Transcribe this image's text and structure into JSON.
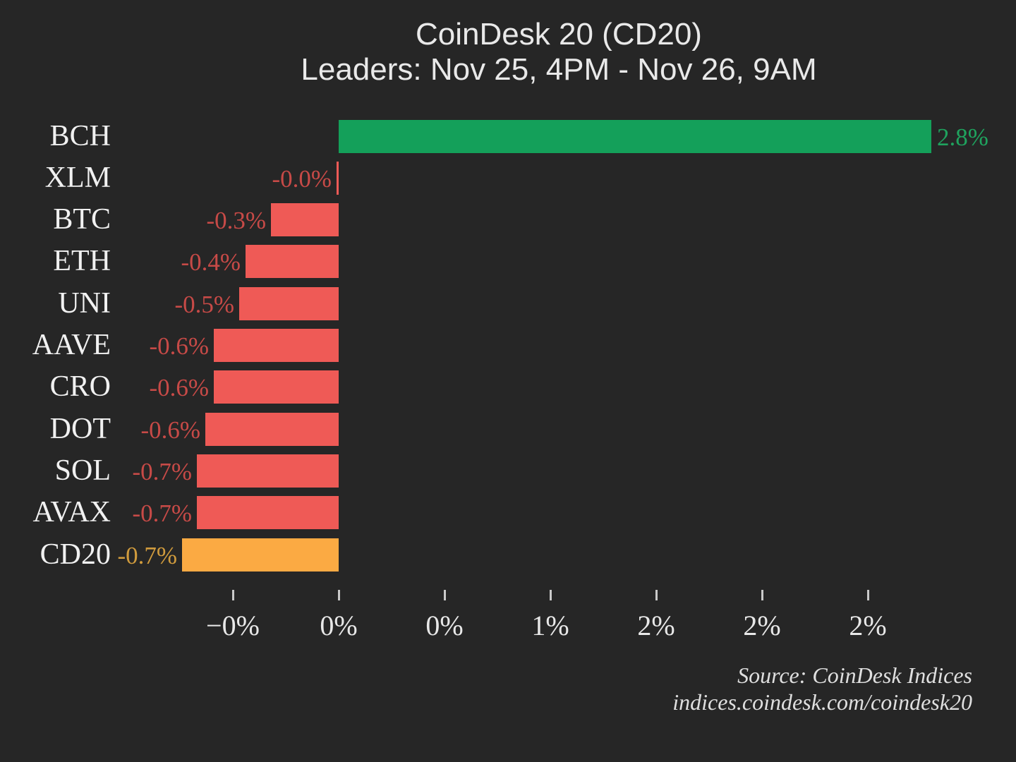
{
  "title": {
    "line1": "CoinDesk 20 (CD20)",
    "line2": "Leaders: Nov 25, 4PM - Nov 26, 9AM"
  },
  "source": {
    "line1": "Source: CoinDesk Indices",
    "line2": "indices.coindesk.com/coindesk20"
  },
  "colors": {
    "background": "#262626",
    "positive_bar": "#14a05a",
    "negative_bar": "#ef5a56",
    "index_bar": "#fbaa43",
    "positive_label": "#1fa35e",
    "negative_label": "#c74a47",
    "index_label": "#d09b3d",
    "category_text": "#f1f1f1",
    "tick_text": "#e8e8e8",
    "title_text": "#e9e9e9",
    "source_text": "#dfdfdf"
  },
  "chart_data": {
    "type": "bar",
    "orientation": "horizontal",
    "title": "CoinDesk 20 (CD20) Leaders: Nov 25, 4PM - Nov 26, 9AM",
    "unit": "%",
    "categories": [
      "BCH",
      "XLM",
      "BTC",
      "ETH",
      "UNI",
      "AAVE",
      "CRO",
      "DOT",
      "SOL",
      "AVAX",
      "CD20"
    ],
    "values": [
      2.8,
      -0.0,
      -0.3,
      -0.4,
      -0.5,
      -0.6,
      -0.6,
      -0.6,
      -0.7,
      -0.7,
      -0.7
    ],
    "rows": [
      {
        "ticker": "BCH",
        "label": "2.8%",
        "value": 2.8,
        "value_est": 2.8,
        "kind": "positive"
      },
      {
        "ticker": "XLM",
        "label": "-0.0%",
        "value": -0.0,
        "value_est": -0.01,
        "kind": "negative"
      },
      {
        "ticker": "BTC",
        "label": "-0.3%",
        "value": -0.3,
        "value_est": -0.32,
        "kind": "negative"
      },
      {
        "ticker": "ETH",
        "label": "-0.4%",
        "value": -0.4,
        "value_est": -0.44,
        "kind": "negative"
      },
      {
        "ticker": "UNI",
        "label": "-0.5%",
        "value": -0.5,
        "value_est": -0.47,
        "kind": "negative"
      },
      {
        "ticker": "AAVE",
        "label": "-0.6%",
        "value": -0.6,
        "value_est": -0.59,
        "kind": "negative"
      },
      {
        "ticker": "CRO",
        "label": "-0.6%",
        "value": -0.6,
        "value_est": -0.59,
        "kind": "negative"
      },
      {
        "ticker": "DOT",
        "label": "-0.6%",
        "value": -0.6,
        "value_est": -0.63,
        "kind": "negative"
      },
      {
        "ticker": "SOL",
        "label": "-0.7%",
        "value": -0.7,
        "value_est": -0.67,
        "kind": "negative"
      },
      {
        "ticker": "AVAX",
        "label": "-0.7%",
        "value": -0.7,
        "value_est": -0.67,
        "kind": "negative"
      },
      {
        "ticker": "CD20",
        "label": "-0.7%",
        "value": -0.7,
        "value_est": -0.74,
        "kind": "index"
      }
    ],
    "x_ticks": [
      "−0%",
      "0%",
      "0%",
      "1%",
      "2%",
      "2%",
      "2%"
    ],
    "x_tick_values": [
      -0.5,
      0.0,
      0.5,
      1.0,
      1.5,
      2.0,
      2.5
    ],
    "xlim": [
      -0.85,
      3.2
    ],
    "grid": false,
    "legend": false
  }
}
